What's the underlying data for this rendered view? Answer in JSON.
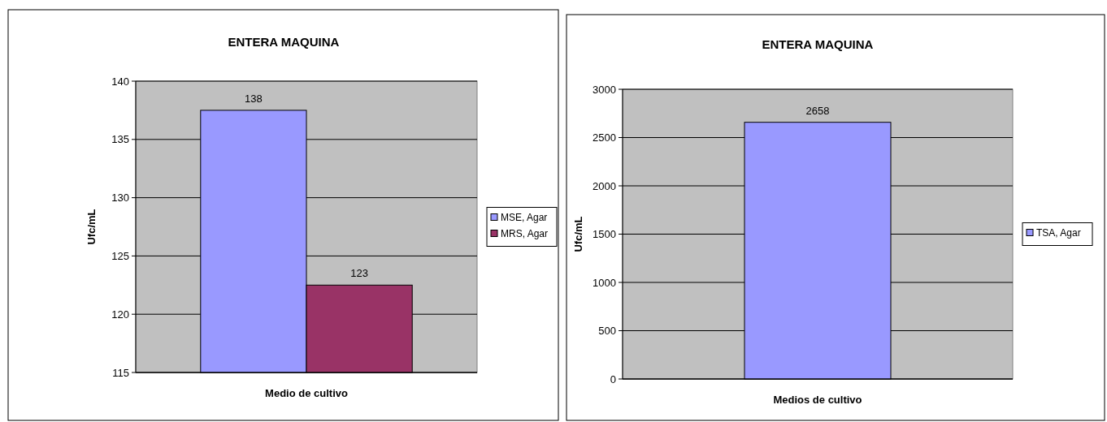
{
  "chart_data": [
    {
      "type": "bar",
      "title": "ENTERA MAQUINA",
      "xlabel": "Medio de cultivo",
      "ylabel": "Ufc/mL",
      "categories": [
        null
      ],
      "series": [
        {
          "name": "MSE, Agar",
          "color": "#9999ff",
          "values": [
            137.5
          ],
          "value_labels": [
            "138"
          ]
        },
        {
          "name": "MRS, Agar",
          "color": "#993366",
          "values": [
            122.5
          ],
          "value_labels": [
            "123"
          ]
        }
      ],
      "ylim": [
        115,
        140
      ],
      "yticks": [
        115,
        120,
        125,
        130,
        135,
        140
      ],
      "grid": "y",
      "legend": "right"
    },
    {
      "type": "bar",
      "title": "ENTERA MAQUINA",
      "xlabel": "Medios de cultivo",
      "ylabel": "Ufc/mL",
      "categories": [
        null
      ],
      "series": [
        {
          "name": "TSA, Agar",
          "color": "#9999ff",
          "values": [
            2658
          ]
        }
      ],
      "ylim": [
        0,
        3000
      ],
      "yticks": [
        0,
        500,
        1000,
        1500,
        2000,
        2500,
        3000
      ],
      "grid": "y",
      "legend": "right",
      "data_labels": true
    }
  ]
}
